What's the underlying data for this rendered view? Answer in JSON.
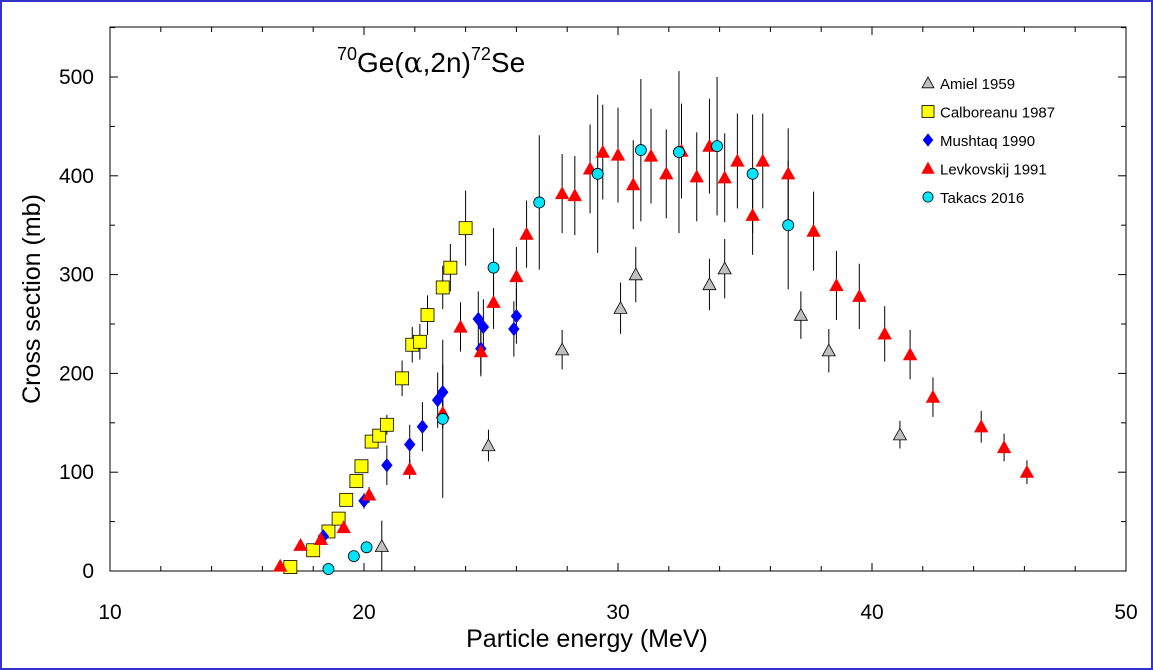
{
  "chart_data": {
    "type": "scatter",
    "title_parts": {
      "mass_target": "70",
      "target": "Ge(",
      "alpha": "α",
      "channel": ",2n)",
      "mass_product": "72",
      "product": "Se"
    },
    "xlabel": "Particle energy (MeV)",
    "ylabel": "Cross section (mb)",
    "xlim": [
      10,
      50
    ],
    "ylim": [
      0,
      550
    ],
    "x_ticks": [
      10,
      20,
      30,
      40,
      50
    ],
    "y_ticks": [
      0,
      100,
      200,
      300,
      400,
      500
    ],
    "grid": false,
    "legend_position": "top-right",
    "series": [
      {
        "name": "Amiel 1959",
        "marker": "triangle",
        "color": "#c0c0c0",
        "points": [
          {
            "x": 20.7,
            "y": 25,
            "err": 26
          },
          {
            "x": 24.9,
            "y": 127,
            "err": 16
          },
          {
            "x": 27.8,
            "y": 224,
            "err": 20
          },
          {
            "x": 30.1,
            "y": 266,
            "err": 26
          },
          {
            "x": 30.7,
            "y": 300,
            "err": 28
          },
          {
            "x": 33.6,
            "y": 290,
            "err": 26
          },
          {
            "x": 34.2,
            "y": 306,
            "err": 30
          },
          {
            "x": 37.2,
            "y": 259,
            "err": 24
          },
          {
            "x": 38.3,
            "y": 223,
            "err": 22
          },
          {
            "x": 41.1,
            "y": 138,
            "err": 14
          }
        ]
      },
      {
        "name": "Calboreanu 1987",
        "marker": "square",
        "color": "#ffff00",
        "points": [
          {
            "x": 17.1,
            "y": 4,
            "err": 0
          },
          {
            "x": 18.0,
            "y": 21,
            "err": 0
          },
          {
            "x": 18.6,
            "y": 40,
            "err": 0
          },
          {
            "x": 19.0,
            "y": 53,
            "err": 0
          },
          {
            "x": 19.3,
            "y": 72,
            "err": 0
          },
          {
            "x": 19.7,
            "y": 91,
            "err": 0
          },
          {
            "x": 19.9,
            "y": 106,
            "err": 0
          },
          {
            "x": 20.3,
            "y": 131,
            "err": 0
          },
          {
            "x": 20.6,
            "y": 137,
            "err": 0
          },
          {
            "x": 20.9,
            "y": 148,
            "err": 10
          },
          {
            "x": 21.5,
            "y": 195,
            "err": 18
          },
          {
            "x": 21.9,
            "y": 229,
            "err": 18
          },
          {
            "x": 22.2,
            "y": 232,
            "err": 18
          },
          {
            "x": 22.5,
            "y": 259,
            "err": 20
          },
          {
            "x": 23.1,
            "y": 287,
            "err": 22
          },
          {
            "x": 23.4,
            "y": 307,
            "err": 24
          },
          {
            "x": 24.0,
            "y": 347,
            "err": 38
          }
        ]
      },
      {
        "name": "Mushtaq 1990",
        "marker": "diamond",
        "color": "#0000ff",
        "points": [
          {
            "x": 18.4,
            "y": 35,
            "err": 0
          },
          {
            "x": 20.0,
            "y": 71,
            "err": 8
          },
          {
            "x": 20.9,
            "y": 107,
            "err": 20
          },
          {
            "x": 21.8,
            "y": 128,
            "err": 20
          },
          {
            "x": 22.3,
            "y": 146,
            "err": 25
          },
          {
            "x": 22.9,
            "y": 173,
            "err": 28
          },
          {
            "x": 23.1,
            "y": 181,
            "err": 28
          },
          {
            "x": 24.5,
            "y": 255,
            "err": 28
          },
          {
            "x": 24.6,
            "y": 225,
            "err": 28
          },
          {
            "x": 24.7,
            "y": 247,
            "err": 28
          },
          {
            "x": 25.9,
            "y": 245,
            "err": 28
          },
          {
            "x": 26.0,
            "y": 258,
            "err": 28
          }
        ]
      },
      {
        "name": "Levkovskij 1991",
        "marker": "triangle",
        "color": "#ff0000",
        "points": [
          {
            "x": 16.7,
            "y": 5,
            "err": 0
          },
          {
            "x": 17.5,
            "y": 26,
            "err": 0
          },
          {
            "x": 18.3,
            "y": 32,
            "err": 0
          },
          {
            "x": 19.2,
            "y": 44,
            "err": 0
          },
          {
            "x": 20.2,
            "y": 77,
            "err": 8
          },
          {
            "x": 21.8,
            "y": 103,
            "err": 10
          },
          {
            "x": 23.1,
            "y": 160,
            "err": 16
          },
          {
            "x": 23.8,
            "y": 247,
            "err": 25
          },
          {
            "x": 24.6,
            "y": 222,
            "err": 22
          },
          {
            "x": 25.1,
            "y": 272,
            "err": 27
          },
          {
            "x": 26.0,
            "y": 298,
            "err": 30
          },
          {
            "x": 26.4,
            "y": 341,
            "err": 34
          },
          {
            "x": 27.8,
            "y": 382,
            "err": 40
          },
          {
            "x": 28.3,
            "y": 380,
            "err": 40
          },
          {
            "x": 28.9,
            "y": 407,
            "err": 45
          },
          {
            "x": 29.4,
            "y": 424,
            "err": 48
          },
          {
            "x": 30.0,
            "y": 421,
            "err": 48
          },
          {
            "x": 30.6,
            "y": 391,
            "err": 45
          },
          {
            "x": 31.3,
            "y": 420,
            "err": 48
          },
          {
            "x": 31.9,
            "y": 402,
            "err": 45
          },
          {
            "x": 32.5,
            "y": 425,
            "err": 48
          },
          {
            "x": 33.1,
            "y": 399,
            "err": 45
          },
          {
            "x": 33.6,
            "y": 430,
            "err": 48
          },
          {
            "x": 34.2,
            "y": 398,
            "err": 45
          },
          {
            "x": 34.7,
            "y": 415,
            "err": 48
          },
          {
            "x": 35.3,
            "y": 360,
            "err": 40
          },
          {
            "x": 35.7,
            "y": 415,
            "err": 48
          },
          {
            "x": 36.7,
            "y": 402,
            "err": 46
          },
          {
            "x": 37.7,
            "y": 344,
            "err": 40
          },
          {
            "x": 38.6,
            "y": 289,
            "err": 35
          },
          {
            "x": 39.5,
            "y": 278,
            "err": 33
          },
          {
            "x": 40.5,
            "y": 240,
            "err": 28
          },
          {
            "x": 41.5,
            "y": 219,
            "err": 25
          },
          {
            "x": 42.4,
            "y": 176,
            "err": 20
          },
          {
            "x": 44.3,
            "y": 146,
            "err": 16
          },
          {
            "x": 45.2,
            "y": 125,
            "err": 14
          },
          {
            "x": 46.1,
            "y": 100,
            "err": 12
          }
        ]
      },
      {
        "name": "Takacs 2016",
        "marker": "circle",
        "color": "#00e5ff",
        "points": [
          {
            "x": 18.6,
            "y": 2,
            "err": 0
          },
          {
            "x": 19.6,
            "y": 15,
            "err": 0
          },
          {
            "x": 20.1,
            "y": 24,
            "err": 0
          },
          {
            "x": 23.1,
            "y": 154,
            "err": 80
          },
          {
            "x": 25.1,
            "y": 307,
            "err": 40
          },
          {
            "x": 26.9,
            "y": 373,
            "err": 68
          },
          {
            "x": 29.2,
            "y": 402,
            "err": 80
          },
          {
            "x": 30.9,
            "y": 426,
            "err": 72
          },
          {
            "x": 32.4,
            "y": 424,
            "err": 82
          },
          {
            "x": 33.9,
            "y": 430,
            "err": 70
          },
          {
            "x": 35.3,
            "y": 402,
            "err": 60
          },
          {
            "x": 36.7,
            "y": 350,
            "err": 65
          }
        ]
      }
    ]
  }
}
